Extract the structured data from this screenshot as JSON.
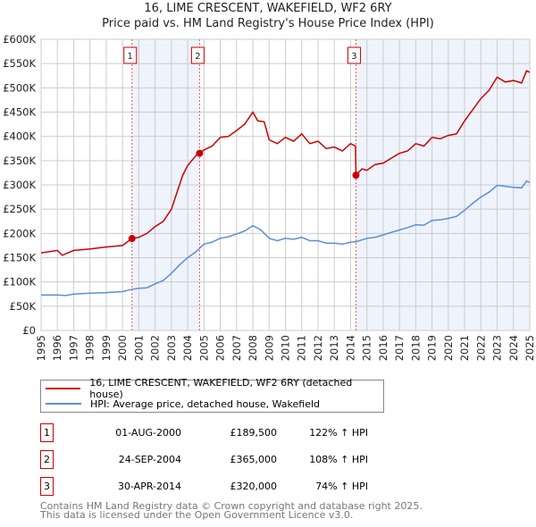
{
  "title_line1": "16, LIME CRESCENT, WAKEFIELD, WF2 6RY",
  "title_line2": "Price paid vs. HM Land Registry's House Price Index (HPI)",
  "chart_data": {
    "type": "line",
    "title": "16, LIME CRESCENT, WAKEFIELD, WF2 6RY — Price paid vs. HM Land Registry's House Price Index (HPI)",
    "xlim": [
      1995,
      2025
    ],
    "ylim": [
      0,
      600000
    ],
    "y_ticks": [
      "£0",
      "£50K",
      "£100K",
      "£150K",
      "£200K",
      "£250K",
      "£300K",
      "£350K",
      "£400K",
      "£450K",
      "£500K",
      "£550K",
      "£600K"
    ],
    "x_ticks": [
      "1995",
      "1996",
      "1997",
      "1998",
      "1999",
      "2000",
      "2001",
      "2002",
      "2003",
      "2004",
      "2005",
      "2006",
      "2007",
      "2008",
      "2009",
      "2010",
      "2011",
      "2012",
      "2013",
      "2014",
      "2015",
      "2016",
      "2017",
      "2018",
      "2019",
      "2020",
      "2021",
      "2022",
      "2023",
      "2024",
      "2025"
    ],
    "colors": {
      "property": "#cc0000",
      "hpi": "#5b8fd6",
      "shade": "#eef3fc"
    },
    "series": [
      {
        "name": "16, LIME CRESCENT, WAKEFIELD, WF2 6RY (detached house)",
        "x": [
          1995,
          1996,
          1996.3,
          1997,
          1998,
          1999,
          2000,
          2000.58,
          2001,
          2001.5,
          2002,
          2002.5,
          2003,
          2003.3,
          2003.7,
          2004,
          2004.5,
          2004.73,
          2005,
          2005.5,
          2006,
          2006.5,
          2007,
          2007.5,
          2008,
          2008.3,
          2008.7,
          2009,
          2009.5,
          2010,
          2010.5,
          2011,
          2011.5,
          2012,
          2012.5,
          2013,
          2013.5,
          2014,
          2014.3,
          2014.33,
          2014.7,
          2015,
          2015.5,
          2016,
          2016.5,
          2017,
          2017.5,
          2018,
          2018.5,
          2019,
          2019.5,
          2020,
          2020.5,
          2021,
          2021.5,
          2022,
          2022.5,
          2023,
          2023.5,
          2024,
          2024.5,
          2024.8,
          2025
        ],
        "y": [
          160000,
          165000,
          155000,
          165000,
          168000,
          172000,
          175000,
          189500,
          192000,
          200000,
          214000,
          225000,
          250000,
          280000,
          320000,
          340000,
          360000,
          365000,
          372000,
          380000,
          398000,
          400000,
          412000,
          425000,
          450000,
          432000,
          430000,
          393000,
          385000,
          398000,
          390000,
          405000,
          385000,
          390000,
          375000,
          378000,
          370000,
          385000,
          380000,
          320000,
          333000,
          330000,
          342000,
          345000,
          355000,
          365000,
          370000,
          385000,
          380000,
          398000,
          395000,
          402000,
          405000,
          432000,
          455000,
          478000,
          495000,
          522000,
          512000,
          515000,
          510000,
          535000,
          532000
        ]
      },
      {
        "name": "HPI: Average price, detached house, Wakefield",
        "x": [
          1995,
          1996,
          1996.5,
          1997,
          1998,
          1999,
          2000,
          2000.6,
          2001,
          2001.5,
          2002,
          2002.5,
          2003,
          2003.5,
          2004,
          2004.5,
          2005,
          2005.5,
          2006,
          2006.5,
          2007,
          2007.5,
          2008,
          2008.5,
          2009,
          2009.5,
          2010,
          2010.5,
          2011,
          2011.5,
          2012,
          2012.5,
          2013,
          2013.5,
          2014,
          2014.33,
          2015,
          2015.5,
          2016,
          2016.5,
          2017,
          2017.5,
          2018,
          2018.5,
          2019,
          2019.5,
          2020,
          2020.5,
          2021,
          2021.5,
          2022,
          2022.5,
          2023,
          2023.5,
          2024,
          2024.5,
          2024.8,
          2025
        ],
        "y": [
          73000,
          73000,
          72000,
          75000,
          77000,
          78000,
          80000,
          85000,
          87000,
          88000,
          96000,
          103000,
          118000,
          135000,
          150000,
          162000,
          178000,
          182000,
          190000,
          193000,
          199000,
          205000,
          216000,
          207000,
          190000,
          185000,
          190000,
          188000,
          192000,
          185000,
          185000,
          180000,
          180000,
          178000,
          182000,
          183000,
          190000,
          192000,
          197000,
          202000,
          207000,
          212000,
          218000,
          217000,
          227000,
          228000,
          231000,
          235000,
          248000,
          262000,
          275000,
          285000,
          299000,
          297000,
          295000,
          294000,
          308000,
          305000
        ]
      }
    ],
    "sales": [
      {
        "label": "1",
        "x": 2000.58,
        "y": 189500
      },
      {
        "label": "2",
        "x": 2004.73,
        "y": 365000
      },
      {
        "label": "3",
        "x": 2014.33,
        "y": 320000
      }
    ]
  },
  "legend": {
    "property": "16, LIME CRESCENT, WAKEFIELD, WF2 6RY (detached house)",
    "hpi": "HPI: Average price, detached house, Wakefield"
  },
  "transactions": [
    {
      "num": "1",
      "date": "01-AUG-2000",
      "price": "£189,500",
      "hpi": "122% ↑ HPI"
    },
    {
      "num": "2",
      "date": "24-SEP-2004",
      "price": "£365,000",
      "hpi": "108% ↑ HPI"
    },
    {
      "num": "3",
      "date": "30-APR-2014",
      "price": "£320,000",
      "hpi": "74% ↑ HPI"
    }
  ],
  "footer": {
    "line1": "Contains HM Land Registry data © Crown copyright and database right 2025.",
    "line2": "This data is licensed under the Open Government Licence v3.0."
  }
}
